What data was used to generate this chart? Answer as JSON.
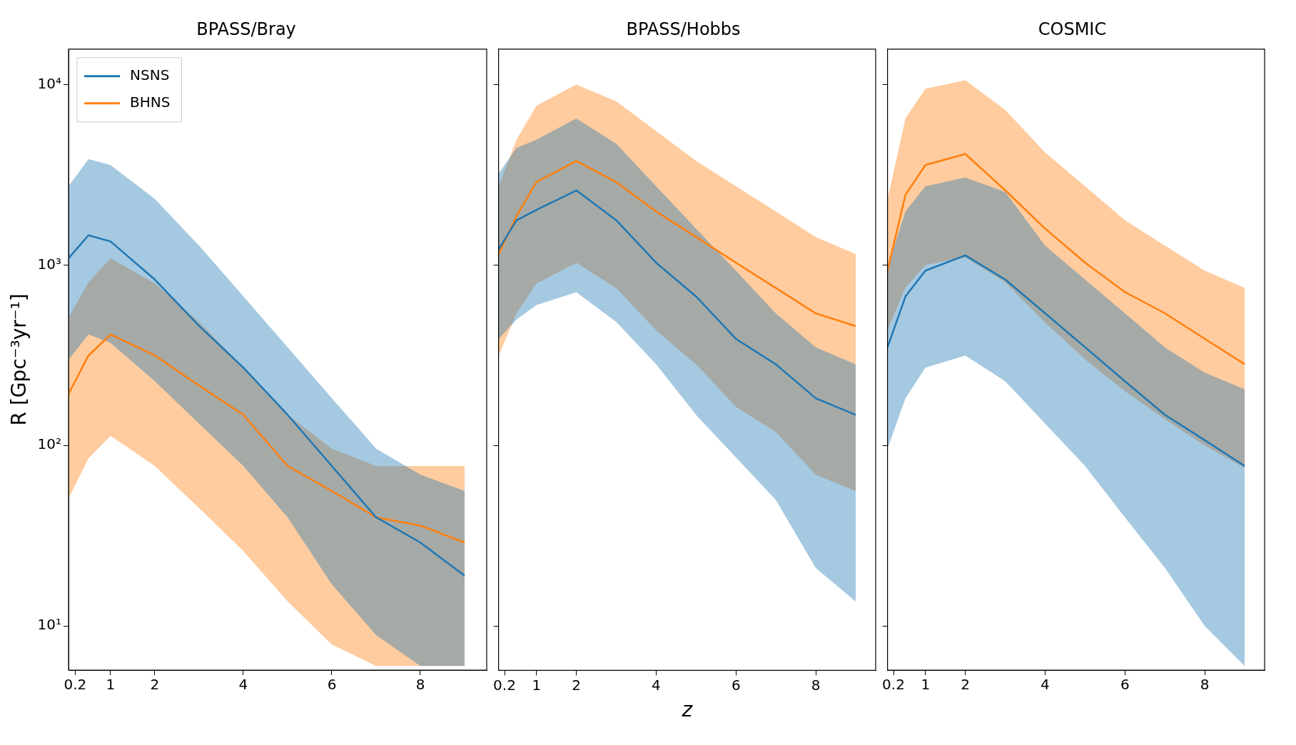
{
  "chart_data": [
    {
      "type": "line",
      "title": "BPASS/Bray",
      "ylabel": "R [Gpc⁻³yr⁻¹]",
      "log": "y",
      "grid": false,
      "legend": "top left",
      "xlim": [
        0.05,
        9.5
      ],
      "xticks": [
        0.2,
        1,
        2,
        4,
        6,
        8
      ],
      "ylim": [
        5.7,
        15700
      ],
      "yticks": [
        {
          "value": 10,
          "label": "10¹"
        },
        {
          "value": 100,
          "label": "10²"
        },
        {
          "value": 1000,
          "label": "10³"
        },
        {
          "value": 10000,
          "label": "10⁴"
        }
      ],
      "x": [
        0.05,
        0.5,
        1,
        2,
        3,
        4,
        5,
        6,
        7,
        8,
        9
      ],
      "series": [
        {
          "name": "NSNS",
          "color": "#1f77b4",
          "values": [
            1090,
            1460,
            1350,
            830,
            460,
            270,
            148,
            77,
            40,
            29,
            19
          ],
          "lower": [
            298,
            412,
            370,
            227,
            132,
            77,
            40,
            17,
            8.9,
            6,
            6
          ],
          "upper": [
            2730,
            3860,
            3580,
            2320,
            1280,
            670,
            350,
            183,
            96,
            69,
            56
          ]
        },
        {
          "name": "BHNS",
          "color": "#ff7f0e",
          "values": [
            193,
            315,
            412,
            315,
            215,
            148,
            77,
            56,
            40,
            36,
            29
          ],
          "lower": [
            51,
            85,
            113,
            77,
            45,
            26,
            13.7,
            7.9,
            6,
            6,
            6
          ],
          "upper": [
            512,
            800,
            1090,
            790,
            484,
            270,
            148,
            96,
            77,
            77,
            77
          ]
        }
      ]
    },
    {
      "type": "line",
      "title": "BPASS/Hobbs",
      "xlabel": "z",
      "log": "y",
      "grid": false,
      "tick_labels": "x",
      "xlim": [
        0.05,
        9.5
      ],
      "xticks": [
        0.2,
        1,
        2,
        4,
        6,
        8
      ],
      "ylim": [
        5.7,
        15700
      ],
      "yticks": [
        {
          "value": 10,
          "label": null
        },
        {
          "value": 100,
          "label": null
        },
        {
          "value": 1000,
          "label": null
        },
        {
          "value": 10000,
          "label": null
        }
      ],
      "x": [
        0.05,
        0.5,
        1,
        2,
        3,
        4,
        5,
        6,
        7,
        8,
        9
      ],
      "series": [
        {
          "color": "#1f77b4",
          "values": [
            1220,
            1770,
            2020,
            2590,
            1770,
            1030,
            670,
            390,
            282,
            183,
            148
          ],
          "lower": [
            390,
            500,
            600,
            708,
            484,
            282,
            148,
            86,
            50,
            21,
            13.7
          ],
          "upper": [
            3210,
            4450,
            4950,
            6490,
            4690,
            2730,
            1590,
            930,
            540,
            350,
            282
          ]
        },
        {
          "color": "#ff7f0e",
          "values": [
            1150,
            1870,
            2880,
            3770,
            2880,
            1980,
            1430,
            1030,
            746,
            540,
            459
          ],
          "lower": [
            315,
            540,
            790,
            1030,
            746,
            435,
            282,
            164,
            119,
            69,
            56
          ],
          "upper": [
            2730,
            4950,
            7640,
            10000,
            8060,
            5520,
            3770,
            2730,
            1980,
            1430,
            1150
          ]
        }
      ]
    },
    {
      "type": "line",
      "title": "COSMIC",
      "log": "y",
      "grid": false,
      "tick_labels": "x",
      "xlim": [
        0.05,
        9.5
      ],
      "xticks": [
        0.2,
        1,
        2,
        4,
        6,
        8
      ],
      "ylim": [
        5.7,
        15700
      ],
      "yticks": [
        {
          "value": 10,
          "label": null
        },
        {
          "value": 100,
          "label": null
        },
        {
          "value": 1000,
          "label": null
        },
        {
          "value": 10000,
          "label": null
        }
      ],
      "x": [
        0.05,
        0.5,
        1,
        2,
        3,
        4,
        5,
        6,
        7,
        8,
        9
      ],
      "series": [
        {
          "color": "#1f77b4",
          "values": [
            350,
            670,
            930,
            1130,
            830,
            540,
            350,
            227,
            148,
            107,
            77
          ],
          "lower": [
            96,
            183,
            270,
            315,
            227,
            132,
            77,
            40,
            21,
            10,
            6
          ],
          "upper": [
            980,
            1980,
            2730,
            3050,
            2540,
            1280,
            830,
            540,
            350,
            253,
            205
          ]
        },
        {
          "color": "#ff7f0e",
          "values": [
            930,
            2450,
            3580,
            4120,
            2590,
            1590,
            1030,
            708,
            540,
            390,
            282
          ],
          "lower": [
            435,
            750,
            1000,
            1100,
            800,
            480,
            300,
            200,
            140,
            100,
            75
          ],
          "upper": [
            2320,
            6490,
            9470,
            10550,
            7230,
            4200,
            2730,
            1770,
            1280,
            930,
            746
          ]
        }
      ]
    }
  ]
}
